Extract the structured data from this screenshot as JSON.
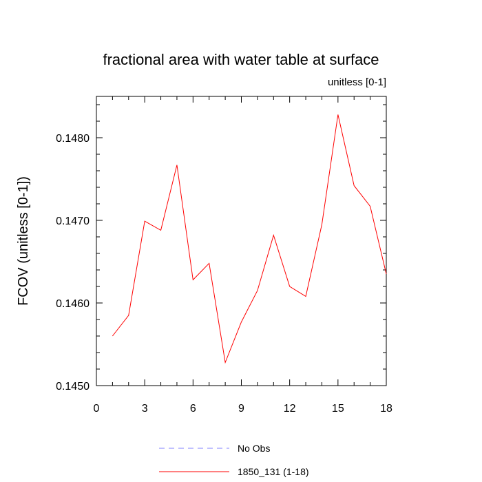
{
  "chart_data": {
    "type": "line",
    "title": "fractional area with water table at surface",
    "subtitle": "unitless [0-1]",
    "xlabel": "",
    "ylabel": "FCOV  (unitless [0-1])",
    "xlim": [
      0,
      18
    ],
    "ylim": [
      0.145,
      0.1485
    ],
    "x_ticks": [
      0,
      3,
      6,
      9,
      12,
      15,
      18
    ],
    "x_tick_labels": [
      "0",
      "3",
      "6",
      "9",
      "12",
      "15",
      "18"
    ],
    "y_ticks": [
      0.145,
      0.146,
      0.147,
      0.148
    ],
    "y_tick_labels": [
      "0.1450",
      "0.1460",
      "0.1470",
      "0.1480"
    ],
    "grid": false,
    "legend_position": "bottom",
    "series": [
      {
        "name": "No Obs",
        "color": "#8080ff",
        "style": "dashed",
        "x": [],
        "values": []
      },
      {
        "name": "1850_131 (1-18)",
        "color": "#ff0000",
        "style": "solid",
        "x": [
          1,
          2,
          3,
          4,
          5,
          6,
          7,
          8,
          9,
          10,
          11,
          12,
          13,
          14,
          15,
          16,
          17,
          18
        ],
        "values": [
          0.1456,
          0.14585,
          0.14699,
          0.14688,
          0.14767,
          0.14628,
          0.14648,
          0.14528,
          0.14577,
          0.14615,
          0.14682,
          0.1462,
          0.14608,
          0.14695,
          0.14828,
          0.14742,
          0.14717,
          0.14635
        ]
      }
    ]
  }
}
